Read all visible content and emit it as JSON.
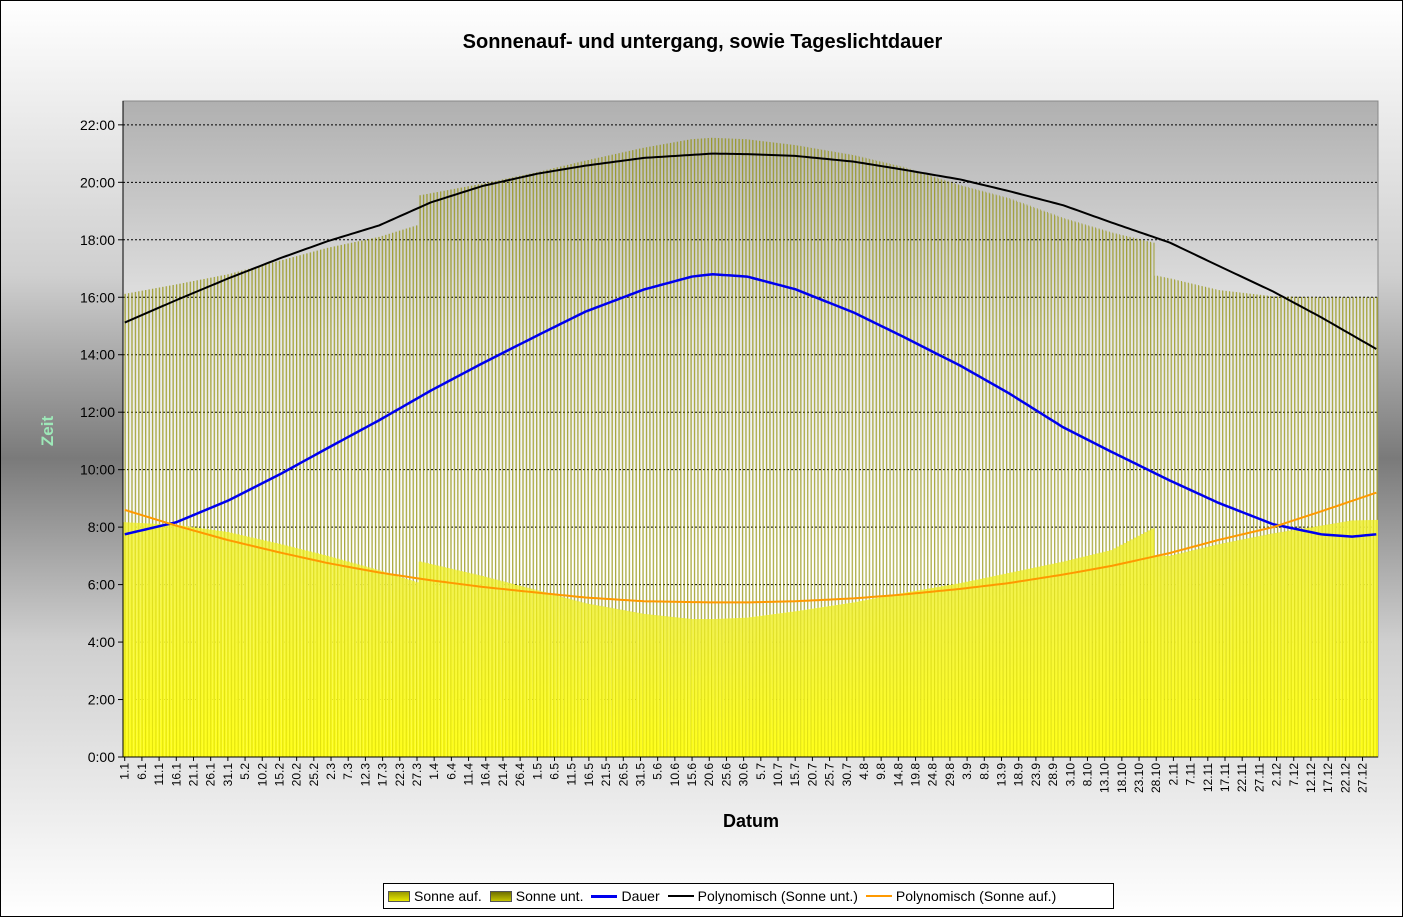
{
  "chart_data": {
    "type": "bar",
    "title": "Sonnenauf- und untergang, sowie Tageslichtdauer",
    "xlabel": "Datum",
    "ylabel": "Zeit",
    "ylim": [
      0,
      22.83
    ],
    "grid": true,
    "legend_position": "bottom",
    "y_ticks": [
      "0:00",
      "2:00",
      "4:00",
      "6:00",
      "8:00",
      "10:00",
      "12:00",
      "14:00",
      "16:00",
      "18:00",
      "20:00",
      "22:00"
    ],
    "x_tick_labels": [
      "1.1",
      "6.1",
      "11.1",
      "16.1",
      "21.1",
      "26.1",
      "31.1",
      "5.2",
      "10.2",
      "15.2",
      "20.2",
      "25.2",
      "2.3",
      "7.3",
      "12.3",
      "17.3",
      "22.3",
      "27.3",
      "1.4",
      "6.4",
      "11.4",
      "16.4",
      "21.4",
      "26.4",
      "1.5",
      "6.5",
      "11.5",
      "16.5",
      "21.5",
      "26.5",
      "31.5",
      "5.6",
      "10.6",
      "15.6",
      "20.6",
      "25.6",
      "30.6",
      "5.7",
      "10.7",
      "15.7",
      "20.7",
      "25.7",
      "30.7",
      "4.8",
      "9.8",
      "14.8",
      "19.8",
      "24.8",
      "29.8",
      "3.9",
      "8.9",
      "13.9",
      "18.9",
      "23.9",
      "28.9",
      "3.10",
      "8.10",
      "13.10",
      "18.10",
      "23.10",
      "28.10",
      "2.11",
      "7.11",
      "12.11",
      "17.11",
      "22.11",
      "27.11",
      "2.12",
      "7.12",
      "12.12",
      "17.12",
      "22.12",
      "27.12"
    ],
    "series": [
      {
        "name": "Sonne auf.",
        "kind": "bar",
        "color": "#f4f400",
        "x_day": [
          1,
          16,
          31,
          46,
          60,
          75,
          86,
          87,
          105,
          121,
          135,
          152,
          166,
          172,
          182,
          196,
          213,
          227,
          244,
          258,
          274,
          288,
          300,
          301,
          305,
          319,
          335,
          349,
          358,
          365
        ],
        "values": [
          8.17,
          8.08,
          7.83,
          7.42,
          7.0,
          6.5,
          6.08,
          6.8,
          6.3,
          5.8,
          5.35,
          4.98,
          4.8,
          4.8,
          4.85,
          5.07,
          5.38,
          5.7,
          6.05,
          6.4,
          6.8,
          7.2,
          7.95,
          7.0,
          7.0,
          7.4,
          7.78,
          8.05,
          8.23,
          8.25
        ]
      },
      {
        "name": "Sonne unt.",
        "kind": "bar",
        "color": "#b0b000",
        "x_day": [
          1,
          16,
          31,
          46,
          60,
          75,
          86,
          87,
          105,
          121,
          135,
          152,
          166,
          172,
          182,
          196,
          213,
          227,
          244,
          258,
          274,
          288,
          300,
          301,
          305,
          319,
          335,
          349,
          358,
          365
        ],
        "values": [
          16.12,
          16.45,
          16.8,
          17.27,
          17.72,
          18.1,
          18.5,
          19.55,
          19.95,
          20.35,
          20.75,
          21.2,
          21.5,
          21.55,
          21.5,
          21.3,
          20.95,
          20.55,
          19.9,
          19.45,
          18.75,
          18.25,
          17.9,
          16.75,
          16.65,
          16.25,
          16.03,
          16.0,
          16.0,
          16.0
        ]
      },
      {
        "name": "Dauer",
        "kind": "line",
        "color": "#0000ee",
        "x_day": [
          1,
          16,
          31,
          46,
          60,
          75,
          90,
          105,
          121,
          135,
          152,
          166,
          172,
          182,
          196,
          213,
          227,
          244,
          258,
          274,
          288,
          305,
          319,
          335,
          349,
          358,
          365
        ],
        "values": [
          7.75,
          8.17,
          8.92,
          9.83,
          10.75,
          11.72,
          12.75,
          13.7,
          14.67,
          15.5,
          16.27,
          16.72,
          16.8,
          16.72,
          16.28,
          15.47,
          14.65,
          13.62,
          12.67,
          11.47,
          10.62,
          9.62,
          8.85,
          8.1,
          7.75,
          7.67,
          7.75
        ]
      },
      {
        "name": "Polynomisch (Sonne unt.)",
        "kind": "line",
        "color": "#000000",
        "x_day": [
          1,
          16,
          31,
          46,
          60,
          75,
          90,
          105,
          121,
          135,
          152,
          172,
          182,
          196,
          213,
          227,
          244,
          258,
          274,
          288,
          305,
          319,
          335,
          349,
          365
        ],
        "values": [
          15.12,
          15.9,
          16.65,
          17.35,
          17.95,
          18.5,
          19.3,
          19.87,
          20.3,
          20.58,
          20.85,
          21.0,
          20.98,
          20.92,
          20.72,
          20.45,
          20.1,
          19.7,
          19.2,
          18.6,
          17.9,
          17.1,
          16.2,
          15.3,
          14.2
        ]
      },
      {
        "name": "Polynomisch (Sonne auf.)",
        "kind": "line",
        "color": "#ff9900",
        "x_day": [
          1,
          16,
          31,
          46,
          60,
          75,
          90,
          105,
          121,
          135,
          152,
          172,
          182,
          196,
          213,
          227,
          244,
          258,
          274,
          288,
          305,
          319,
          335,
          349,
          365
        ],
        "values": [
          8.6,
          8.05,
          7.55,
          7.12,
          6.75,
          6.42,
          6.15,
          5.92,
          5.72,
          5.55,
          5.42,
          5.38,
          5.38,
          5.42,
          5.52,
          5.65,
          5.85,
          6.05,
          6.35,
          6.65,
          7.1,
          7.55,
          8.0,
          8.55,
          9.2
        ]
      }
    ]
  }
}
